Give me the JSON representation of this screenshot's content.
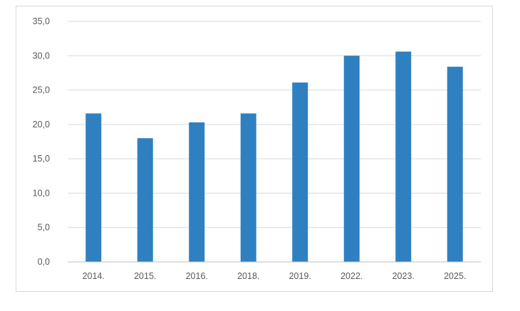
{
  "chart_data": {
    "type": "bar",
    "categories": [
      "2014.",
      "2015.",
      "2016.",
      "2018.",
      "2019.",
      "2022.",
      "2023.",
      "2025."
    ],
    "series": [
      {
        "values": [
          21.6,
          18.0,
          20.3,
          21.6,
          26.1,
          30.0,
          30.6,
          28.4
        ]
      }
    ],
    "ylim": [
      0,
      35
    ],
    "yticks": [
      "0,0",
      "5,0",
      "10,0",
      "15,0",
      "20,0",
      "25,0",
      "30,0",
      "35,0"
    ],
    "grid": true,
    "legend": "none",
    "colors": {
      "bar": "#2f80c0",
      "grid": "#d9d9d9",
      "axis": "#bfbfbf",
      "text": "#595959"
    }
  }
}
